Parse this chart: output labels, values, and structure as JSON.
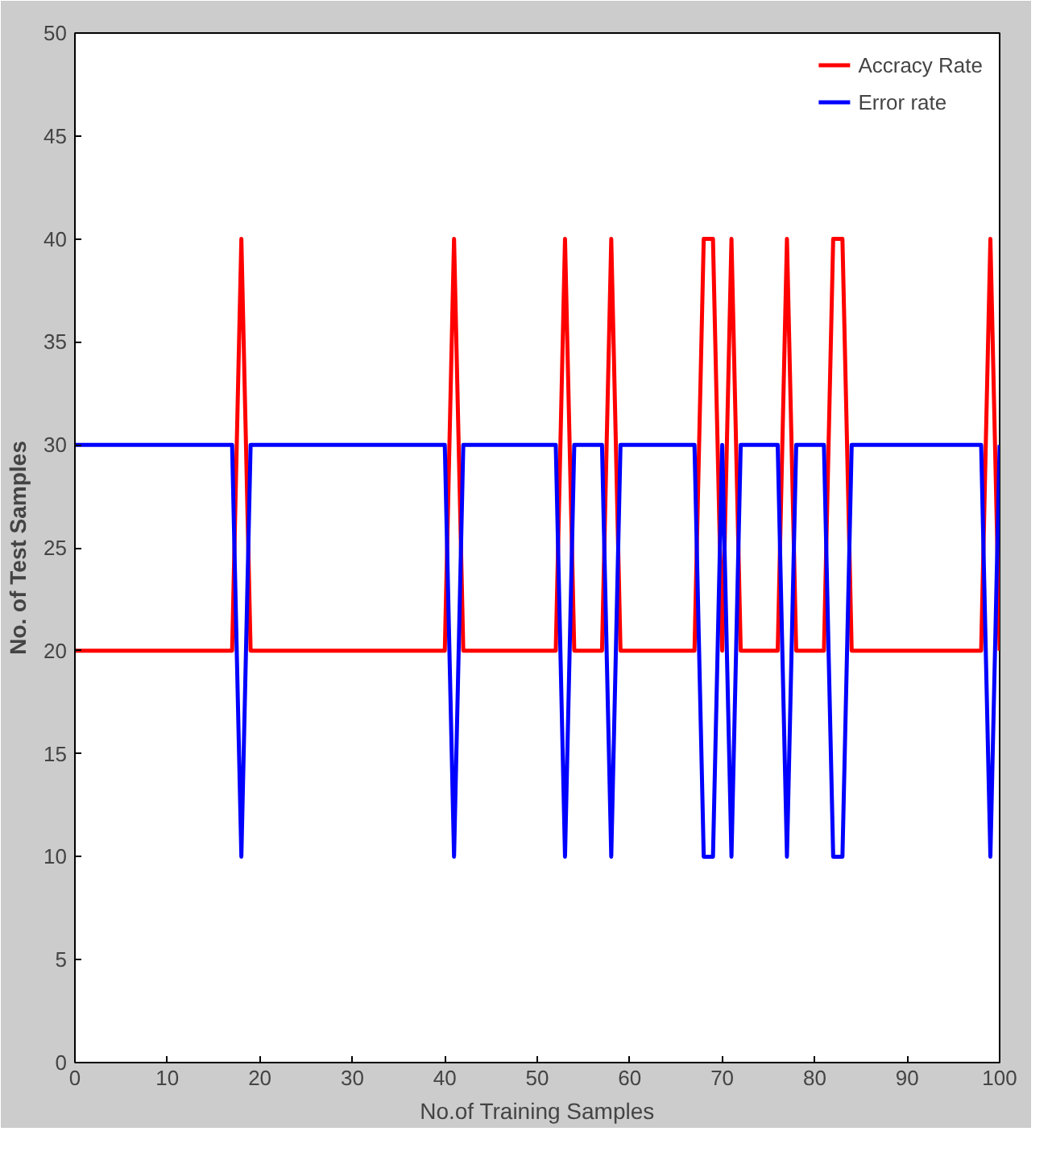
{
  "chart_data": {
    "type": "line",
    "xlabel": "No.of Training Samples",
    "ylabel": "No. of Test Samples",
    "xlim": [
      0,
      100
    ],
    "ylim": [
      0,
      50
    ],
    "xticks": [
      0,
      10,
      20,
      30,
      40,
      50,
      60,
      70,
      80,
      90,
      100
    ],
    "yticks": [
      0,
      5,
      10,
      15,
      20,
      25,
      30,
      35,
      40,
      45,
      50
    ],
    "grid": false,
    "legend": "top right",
    "series": [
      {
        "name": "Accracy Rate",
        "color": "#ff0000",
        "x": [
          0,
          17,
          18,
          19,
          40,
          41,
          42,
          52,
          53,
          54,
          57,
          58,
          59,
          67,
          68,
          69,
          70,
          71,
          72,
          76,
          77,
          78,
          81,
          82,
          83,
          84,
          98,
          99,
          100
        ],
        "values": [
          20,
          20,
          40,
          20,
          20,
          40,
          20,
          20,
          40,
          20,
          20,
          40,
          20,
          20,
          40,
          40,
          20,
          40,
          20,
          20,
          40,
          20,
          20,
          40,
          40,
          20,
          20,
          40,
          20
        ]
      },
      {
        "name": "Error rate",
        "color": "#0000ff",
        "x": [
          0,
          17,
          18,
          19,
          40,
          41,
          42,
          52,
          53,
          54,
          57,
          58,
          59,
          67,
          68,
          69,
          70,
          71,
          72,
          76,
          77,
          78,
          81,
          82,
          83,
          84,
          98,
          99,
          100
        ],
        "values": [
          30,
          30,
          10,
          30,
          30,
          10,
          30,
          30,
          10,
          30,
          30,
          10,
          30,
          30,
          10,
          10,
          30,
          10,
          30,
          30,
          10,
          30,
          30,
          10,
          10,
          30,
          30,
          10,
          30
        ]
      }
    ]
  }
}
